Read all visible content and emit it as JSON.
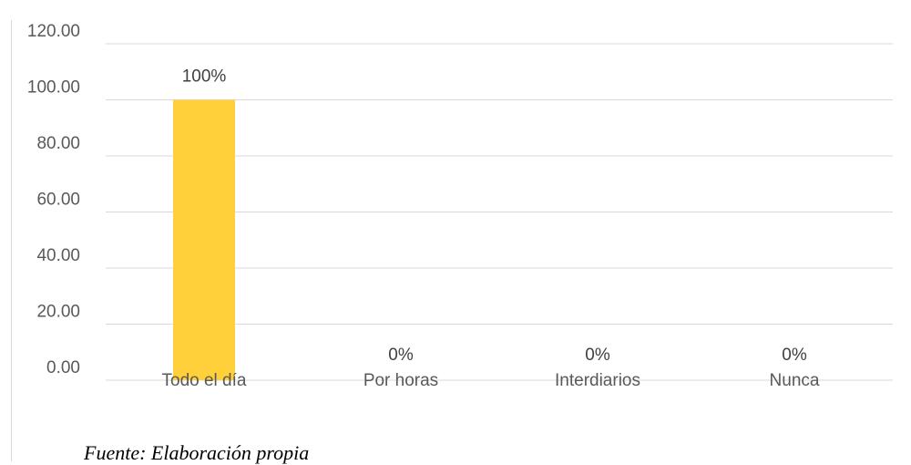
{
  "chart_data": {
    "type": "bar",
    "categories": [
      "Todo el día",
      "Por horas",
      "Interdiarios",
      "Nunca"
    ],
    "values": [
      100,
      0,
      0,
      0
    ],
    "data_labels": [
      "100%",
      "0%",
      "0%",
      "0%"
    ],
    "y_tick_labels": [
      "0.00",
      "20.00",
      "40.00",
      "60.00",
      "80.00",
      "100.00",
      "120.00"
    ],
    "ylim": [
      0,
      120
    ],
    "grid": true,
    "legend": "none"
  },
  "colors": {
    "bar": "#FFD03A",
    "grid": "#D9D9D9",
    "text": "#595959"
  },
  "footer": {
    "source": "Fuente: Elaboración propia"
  }
}
